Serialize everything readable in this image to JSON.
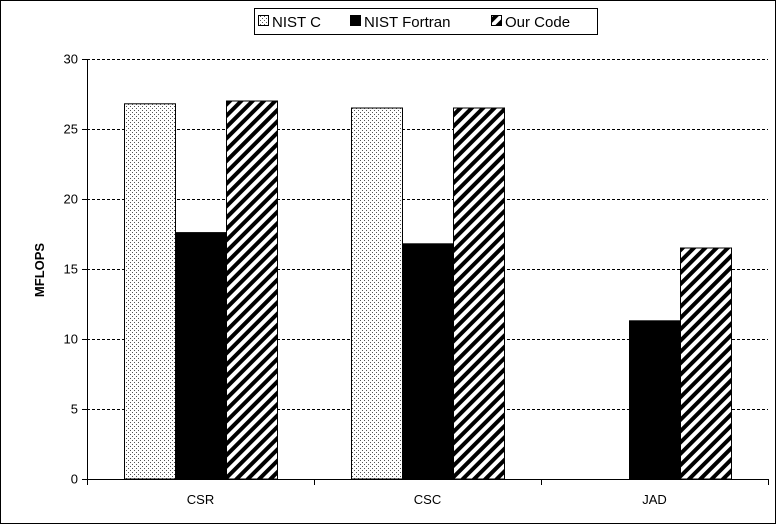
{
  "chart_data": {
    "type": "bar",
    "title": "",
    "xlabel": "",
    "ylabel": "MFLOPS",
    "categories": [
      "CSR",
      "CSC",
      "JAD"
    ],
    "series": [
      {
        "name": "NIST C",
        "values": [
          26.8,
          26.5,
          null
        ],
        "fill": "dotted"
      },
      {
        "name": "NIST Fortran",
        "values": [
          17.6,
          16.8,
          11.3
        ],
        "fill": "solid"
      },
      {
        "name": "Our Code",
        "values": [
          27.0,
          26.5,
          16.5
        ],
        "fill": "diagonal-hatch"
      }
    ],
    "ylim": [
      0,
      30
    ],
    "yticks": [
      0,
      5,
      10,
      15,
      20,
      25,
      30
    ],
    "grid": "horizontal dashed",
    "legend_position": "top-center",
    "colors": {
      "solid": "#000000",
      "background": "#ffffff",
      "dots": "#555555"
    }
  }
}
